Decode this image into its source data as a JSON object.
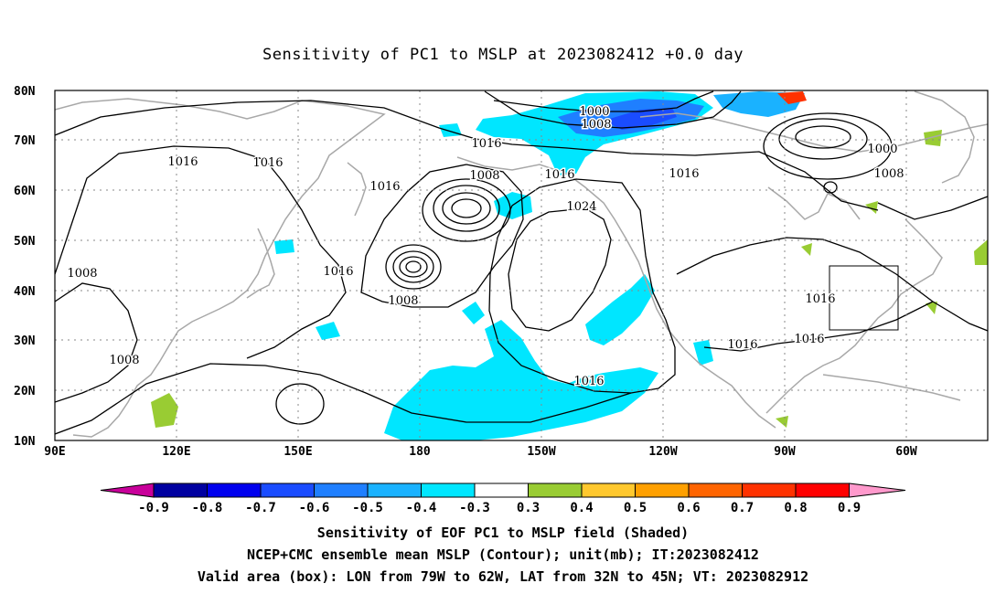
{
  "title": "Sensitivity of PC1 to MSLP at 2023082412 +0.0 day",
  "axes": {
    "lat_labels": [
      "80N",
      "70N",
      "60N",
      "50N",
      "40N",
      "30N",
      "20N",
      "10N"
    ],
    "lon_labels": [
      "90E",
      "120E",
      "150E",
      "180",
      "150W",
      "120W",
      "90W",
      "60W"
    ]
  },
  "contour_labels": [
    {
      "text": "1000"
    },
    {
      "text": "1008"
    },
    {
      "text": "1016"
    },
    {
      "text": "1016"
    },
    {
      "text": "1016"
    },
    {
      "text": "1016"
    },
    {
      "text": "1008"
    },
    {
      "text": "1016"
    },
    {
      "text": "1016"
    },
    {
      "text": "1024"
    },
    {
      "text": "1000"
    },
    {
      "text": "1008"
    },
    {
      "text": "1008"
    },
    {
      "text": "1016"
    },
    {
      "text": "1008"
    },
    {
      "text": "1008"
    },
    {
      "text": "1016"
    },
    {
      "text": "1016"
    },
    {
      "text": "1016"
    },
    {
      "text": "1016"
    }
  ],
  "colorbar": {
    "labels": [
      "-0.9",
      "-0.8",
      "-0.7",
      "-0.6",
      "-0.5",
      "-0.4",
      "-0.3",
      "0.3",
      "0.4",
      "0.5",
      "0.6",
      "0.7",
      "0.8",
      "0.9"
    ],
    "colors": [
      "#0000a0",
      "#0000ee",
      "#1a4cff",
      "#1f7fff",
      "#1ab2ff",
      "#00e6ff",
      "#ffffff",
      "#99cc33",
      "#ffc82e",
      "#ffa000",
      "#ff6400",
      "#ff3200",
      "#ff0000"
    ],
    "low_end_color": "#c8009a",
    "high_end_color": "#ff99cc"
  },
  "footer": {
    "line1": "Sensitivity of EOF PC1 to MSLP field (Shaded)",
    "line2": "NCEP+CMC ensemble mean MSLP (Contour); unit(mb); IT:2023082412",
    "line3": "Valid area (box): LON from 79W to 62W, LAT from 32N to 45N; VT: 2023082912"
  }
}
